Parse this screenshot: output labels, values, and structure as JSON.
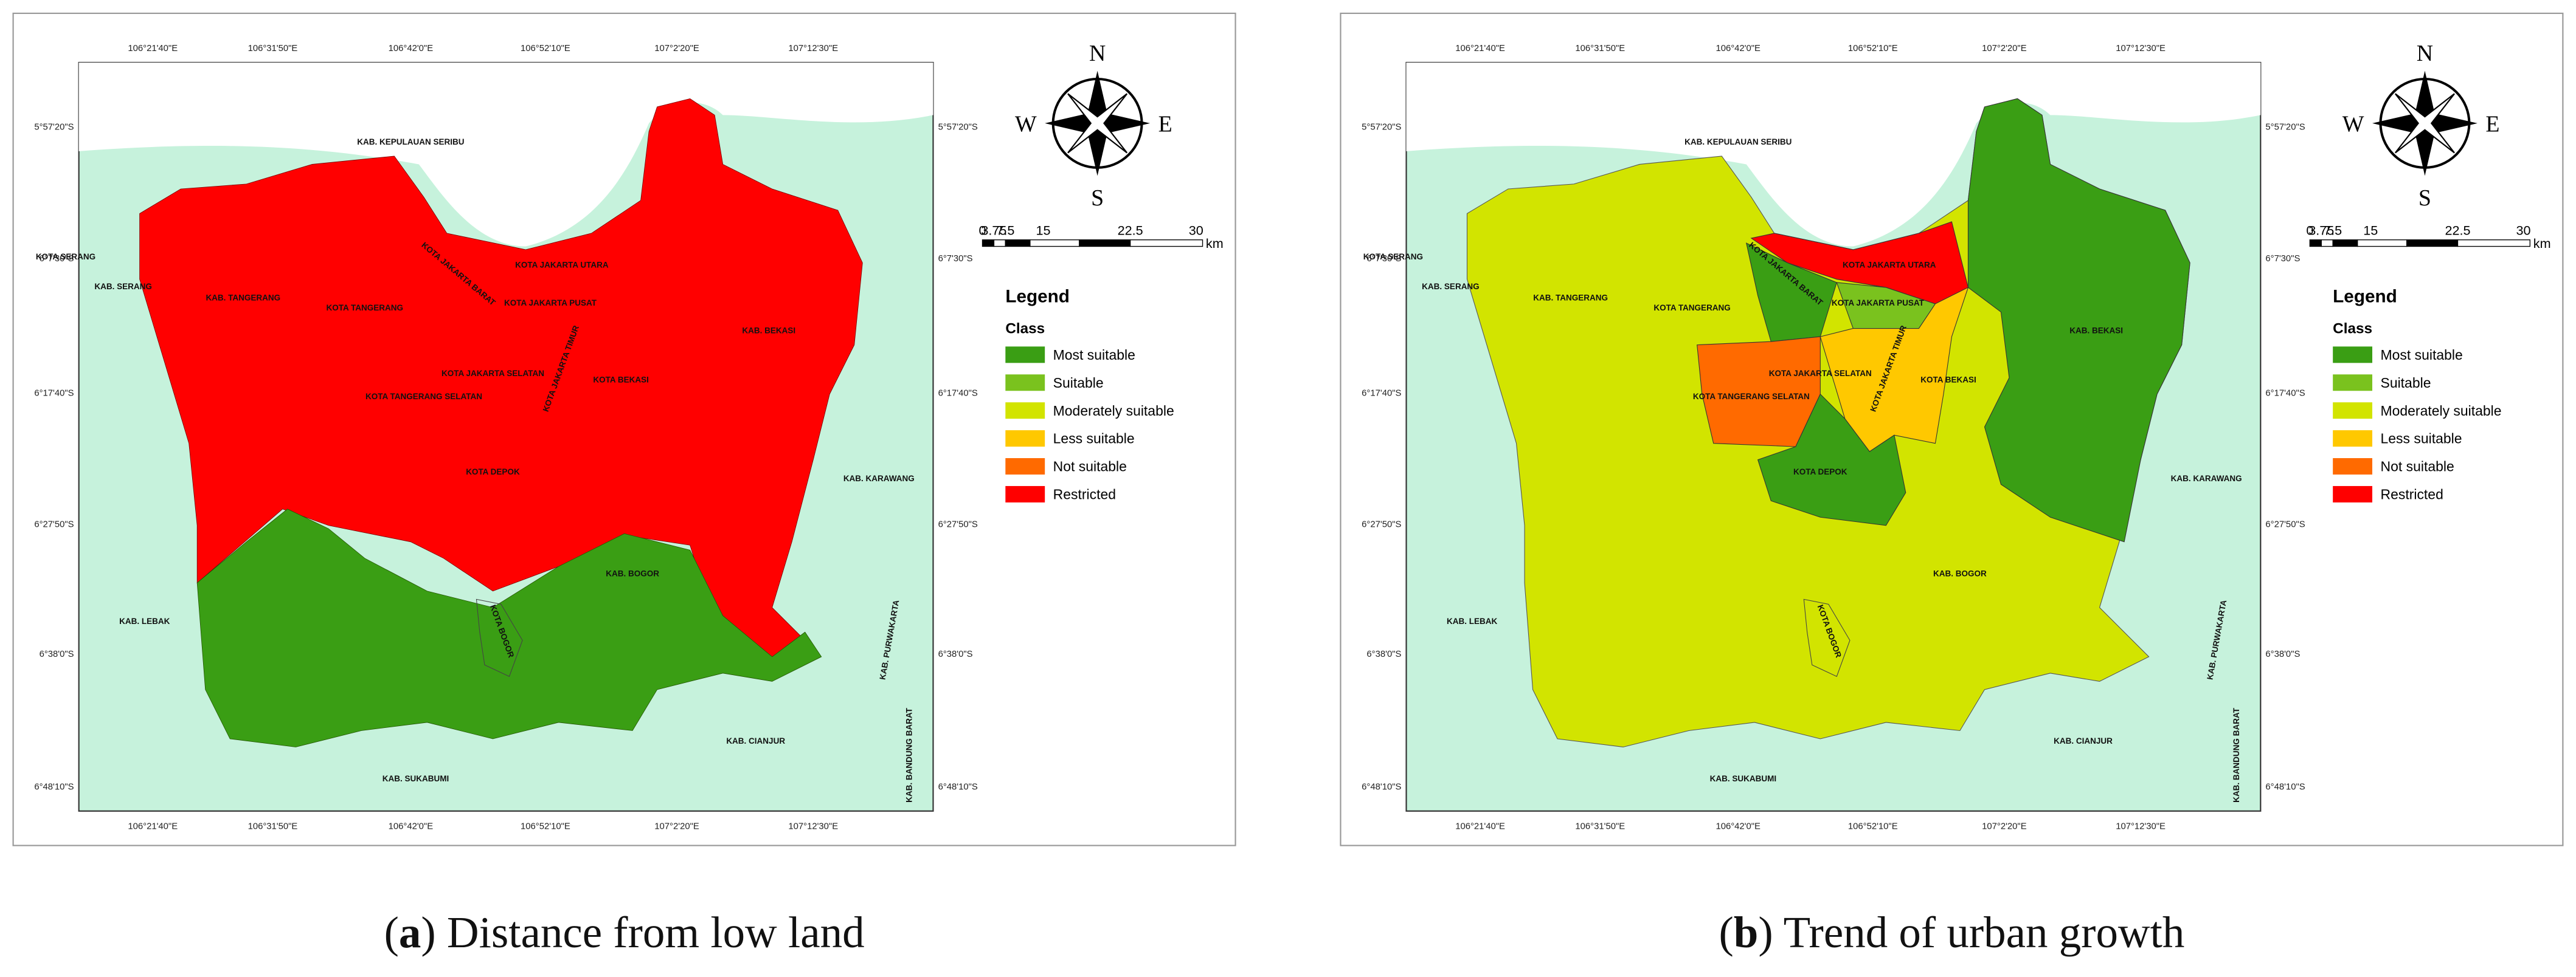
{
  "panels": [
    {
      "caption": [
        "(",
        "a",
        ") Distance from low land"
      ],
      "lon_ticks": [
        "106°21'40\"E",
        "106°31'50\"E",
        "106°42'0\"E",
        "106°52'10\"E",
        "107°2'20\"E",
        "107°12'30\"E"
      ],
      "lat_ticks": [
        "5°57'20\"S",
        "6°7'30\"S",
        "6°17'40\"S",
        "6°27'50\"S",
        "6°38'0\"S",
        "6°48'10\"S"
      ],
      "compass": [
        "N",
        "E",
        "S",
        "W"
      ],
      "scale": [
        "0",
        "3.75",
        "7.5",
        "15",
        "22.5",
        "30",
        "km"
      ],
      "legend": {
        "title": "Legend",
        "subtitle": "Class",
        "items": [
          {
            "name": "Most suitable",
            "color": "#3a9e14"
          },
          {
            "name": "Suitable",
            "color": "#7ac21e"
          },
          {
            "name": "Moderately suitable",
            "color": "#d2e400"
          },
          {
            "name": "Less suitable",
            "color": "#ffc800"
          },
          {
            "name": "Not suitable",
            "color": "#ff6a00"
          },
          {
            "name": "Restricted",
            "color": "#ff0000"
          }
        ]
      },
      "regions": [
        "KAB. KEPULAUAN SERIBU",
        "KOTA SERANG",
        "KAB. SERANG",
        "KAB. TANGERANG",
        "KOTA TANGERANG",
        "KOTA JAKARTA BARAT",
        "KOTA JAKARTA UTARA",
        "KOTA JAKARTA PUSAT",
        "KAB. BEKASI",
        "KOTA JAKARTA SELATAN",
        "KOTA JAKARTA TIMUR",
        "KOTA BEKASI",
        "KOTA TANGERANG SELATAN",
        "KOTA DEPOK",
        "KAB. KARAWANG",
        "KAB. BOGOR",
        "KOTA BOGOR",
        "KAB. LEBAK",
        "KAB. PURWAKARTA",
        "KAB. CIANJUR",
        "KAB. BANDUNG BARAT",
        "KAB. SUKABUMI"
      ]
    },
    {
      "caption": [
        "(",
        "b",
        ") Trend of urban growth"
      ],
      "lon_ticks": [
        "106°21'40\"E",
        "106°31'50\"E",
        "106°42'0\"E",
        "106°52'10\"E",
        "107°2'20\"E",
        "107°12'30\"E"
      ],
      "lat_ticks": [
        "5°57'20\"S",
        "6°7'30\"S",
        "6°17'40\"S",
        "6°27'50\"S",
        "6°38'0\"S",
        "6°48'10\"S"
      ],
      "compass": [
        "N",
        "E",
        "S",
        "W"
      ],
      "scale": [
        "0",
        "3.75",
        "7.5",
        "15",
        "22.5",
        "30",
        "km"
      ],
      "legend": {
        "title": "Legend",
        "subtitle": "Class",
        "items": [
          {
            "name": "Most suitable",
            "color": "#3a9e14"
          },
          {
            "name": "Suitable",
            "color": "#7ac21e"
          },
          {
            "name": "Moderately suitable",
            "color": "#d2e400"
          },
          {
            "name": "Less suitable",
            "color": "#ffc800"
          },
          {
            "name": "Not suitable",
            "color": "#ff6a00"
          },
          {
            "name": "Restricted",
            "color": "#ff0000"
          }
        ]
      },
      "regions": [
        "KAB. KEPULAUAN SERIBU",
        "KOTA SERANG",
        "KAB. SERANG",
        "KAB. TANGERANG",
        "KOTA TANGERANG",
        "KOTA JAKARTA BARAT",
        "KOTA JAKARTA UTARA",
        "KOTA JAKARTA PUSAT",
        "KAB. BEKASI",
        "KOTA JAKARTA SELATAN",
        "KOTA JAKARTA TIMUR",
        "KOTA BEKASI",
        "KOTA TANGERANG SELATAN",
        "KOTA DEPOK",
        "KAB. KARAWANG",
        "KAB. BOGOR",
        "KOTA BOGOR",
        "KAB. LEBAK",
        "KAB. PURWAKARTA",
        "KAB. CIANJUR",
        "KAB. BANDUNG BARAT",
        "KAB. SUKABUMI"
      ]
    }
  ]
}
